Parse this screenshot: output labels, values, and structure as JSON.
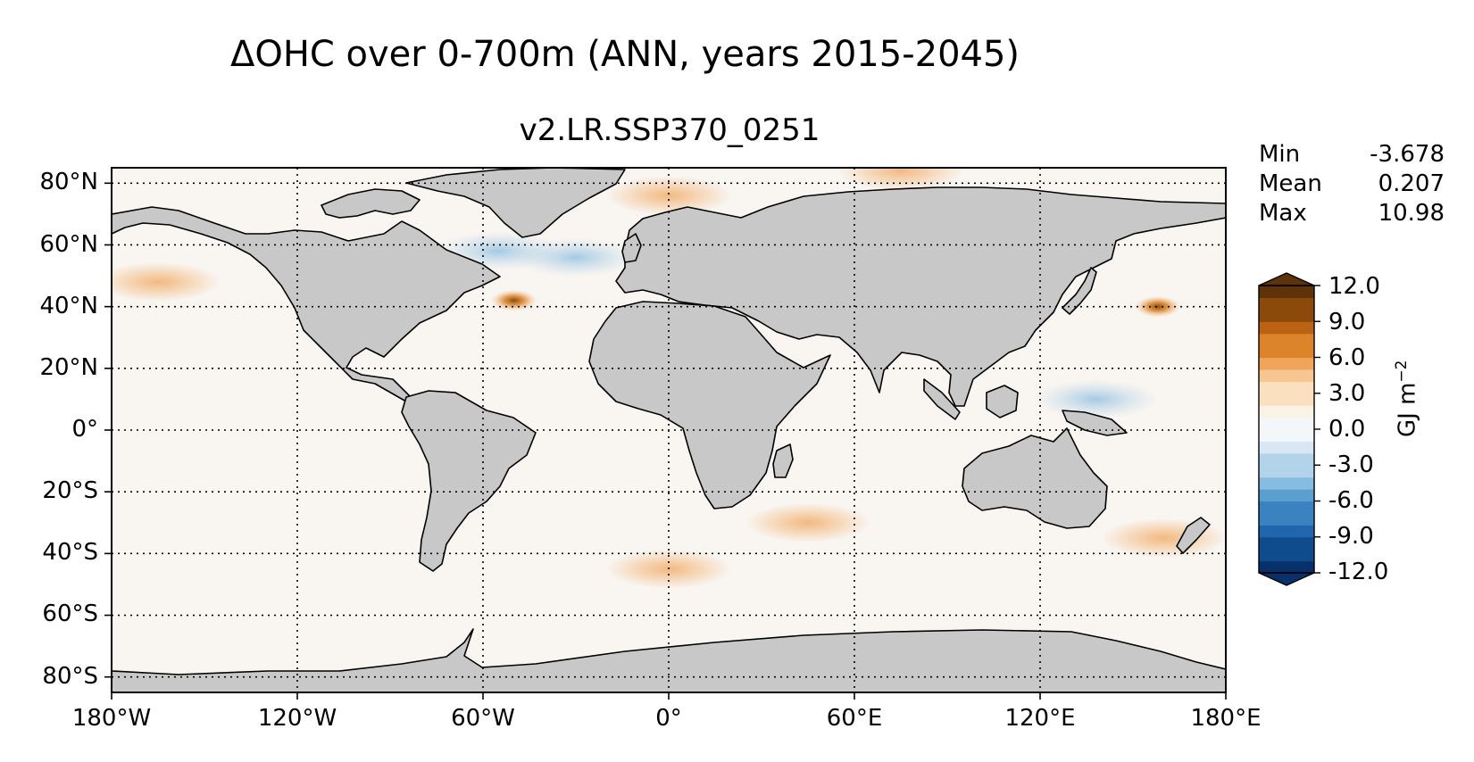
{
  "title": "ΔOHC over 0-700m (ANN, years 2015-2045)",
  "subtitle": "v2.LR.SSP370_0251",
  "stats": [
    {
      "label": "Min",
      "value": "-3.678"
    },
    {
      "label": "Mean",
      "value": "0.207"
    },
    {
      "label": "Max",
      "value": "10.98"
    }
  ],
  "map": {
    "projection": "PlateCarree",
    "lon_range": [
      -180,
      180
    ],
    "lat_range": [
      -85,
      85
    ],
    "land_color": "#c8c8c8",
    "gridlines": "dotted",
    "lat_ticks": [
      "80°N",
      "60°N",
      "40°N",
      "20°N",
      "0°",
      "20°S",
      "40°S",
      "60°S",
      "80°S"
    ],
    "lon_ticks": [
      "180°W",
      "120°W",
      "60°W",
      "0°",
      "60°E",
      "120°E",
      "180°E"
    ],
    "lat_tick_values": [
      80,
      60,
      40,
      20,
      0,
      -20,
      -40,
      -60,
      -80
    ],
    "lon_tick_values": [
      -180,
      -120,
      -60,
      0,
      60,
      120,
      180
    ]
  },
  "colorbar": {
    "label": "GJ m",
    "label_exponent": "−2",
    "ticks": [
      "12.0",
      "9.0",
      "6.0",
      "3.0",
      "0.0",
      "-3.0",
      "-6.0",
      "-9.0",
      "-12.0"
    ],
    "tick_values": [
      12,
      9,
      6,
      3,
      0,
      -3,
      -6,
      -9,
      -12
    ],
    "range": [
      -12,
      12
    ],
    "extend": "both",
    "colors": [
      "#08306b",
      "#0f4c8e",
      "#2166ac",
      "#3a83c0",
      "#5b9fcf",
      "#86bcdf",
      "#b3d3ea",
      "#d8e7f3",
      "#f3f7fa",
      "#fbf2e6",
      "#fbe0bf",
      "#f7c690",
      "#f1a55a",
      "#dc842a",
      "#bb6313",
      "#8c4a0a",
      "#5e330a"
    ]
  },
  "chart_data": {
    "type": "heatmap",
    "variable": "ΔOHC over 0-700m",
    "units": "GJ m^-2",
    "stats": {
      "min": -3.678,
      "mean": 0.207,
      "max": 10.98
    },
    "anomalies": [
      {
        "lon": -50,
        "lat": 42,
        "value": 10.5
      },
      {
        "lon": 158,
        "lat": 40,
        "value": 7.0
      },
      {
        "lon": -165,
        "lat": 48,
        "value": 3.0
      },
      {
        "lon": 0,
        "lat": 76,
        "value": 3.0
      },
      {
        "lon": 75,
        "lat": 84,
        "value": 4.0
      },
      {
        "lon": -30,
        "lat": 56,
        "value": -3.0
      },
      {
        "lon": -55,
        "lat": 58,
        "value": -2.0
      },
      {
        "lon": 138,
        "lat": 10,
        "value": -2.0
      },
      {
        "lon": 0,
        "lat": -45,
        "value": 2.0
      },
      {
        "lon": 45,
        "lat": -30,
        "value": 2.0
      },
      {
        "lon": 160,
        "lat": -35,
        "value": 2.0
      }
    ]
  }
}
